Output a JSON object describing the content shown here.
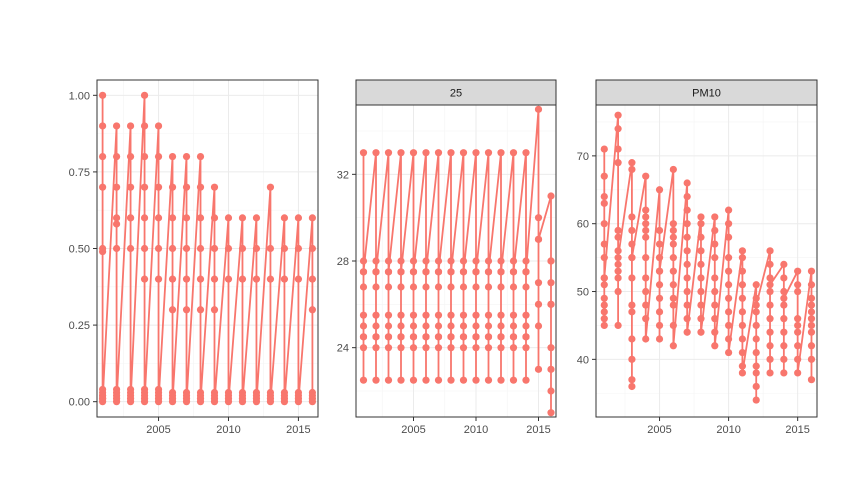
{
  "chart_data": [
    {
      "type": "line",
      "strip_label": "",
      "markers": true,
      "color": "#F8766D",
      "grid": true,
      "xlim": [
        2000.6,
        2016.4
      ],
      "ylim": [
        -0.05,
        1.05
      ],
      "x_ticks": [
        2005,
        2010,
        2015
      ],
      "y_ticks": [
        0.0,
        0.25,
        0.5,
        0.75,
        1.0
      ],
      "y_tick_labels": [
        "0.00",
        "0.25",
        "0.50",
        "0.75",
        "1.00"
      ],
      "x": [
        2001,
        2001,
        2001,
        2001,
        2001,
        2001,
        2001,
        2001,
        2001,
        2001,
        2001,
        2001,
        2001,
        2002,
        2002,
        2002,
        2002,
        2002,
        2002,
        2002,
        2002,
        2002,
        2002,
        2002,
        2003,
        2003,
        2003,
        2003,
        2003,
        2003,
        2003,
        2003,
        2003,
        2003,
        2003,
        2004,
        2004,
        2004,
        2004,
        2004,
        2004,
        2004,
        2004,
        2004,
        2004,
        2004,
        2004,
        2005,
        2005,
        2005,
        2005,
        2005,
        2005,
        2005,
        2005,
        2005,
        2005,
        2005,
        2006,
        2006,
        2006,
        2006,
        2006,
        2006,
        2006,
        2006,
        2006,
        2006,
        2007,
        2007,
        2007,
        2007,
        2007,
        2007,
        2007,
        2007,
        2007,
        2007,
        2008,
        2008,
        2008,
        2008,
        2008,
        2008,
        2008,
        2008,
        2008,
        2008,
        2009,
        2009,
        2009,
        2009,
        2009,
        2009,
        2009,
        2009,
        2009,
        2010,
        2010,
        2010,
        2010,
        2010,
        2010,
        2010,
        2011,
        2011,
        2011,
        2011,
        2011,
        2011,
        2011,
        2012,
        2012,
        2012,
        2012,
        2012,
        2012,
        2012,
        2013,
        2013,
        2013,
        2013,
        2013,
        2013,
        2013,
        2014,
        2014,
        2014,
        2014,
        2014,
        2014,
        2014,
        2015,
        2015,
        2015,
        2015,
        2015,
        2015,
        2015,
        2016,
        2016,
        2016,
        2016,
        2016,
        2016,
        2016,
        2016
      ],
      "y": [
        1.0,
        0.9,
        0.8,
        0.7,
        0.5,
        0.49,
        0.04,
        0.03,
        0.02,
        0.02,
        0.01,
        0.01,
        0.0,
        0.9,
        0.8,
        0.7,
        0.6,
        0.58,
        0.5,
        0.04,
        0.03,
        0.02,
        0.01,
        0.0,
        0.9,
        0.8,
        0.7,
        0.6,
        0.6,
        0.5,
        0.04,
        0.03,
        0.02,
        0.01,
        0.0,
        1.0,
        0.9,
        0.8,
        0.7,
        0.6,
        0.5,
        0.4,
        0.04,
        0.03,
        0.02,
        0.01,
        0.0,
        0.9,
        0.8,
        0.7,
        0.6,
        0.5,
        0.4,
        0.04,
        0.03,
        0.02,
        0.01,
        0.0,
        0.8,
        0.7,
        0.6,
        0.5,
        0.4,
        0.3,
        0.03,
        0.02,
        0.01,
        0.0,
        0.8,
        0.7,
        0.6,
        0.5,
        0.4,
        0.3,
        0.03,
        0.02,
        0.01,
        0.0,
        0.8,
        0.7,
        0.6,
        0.5,
        0.4,
        0.3,
        0.03,
        0.02,
        0.01,
        0.0,
        0.7,
        0.6,
        0.5,
        0.4,
        0.3,
        0.03,
        0.02,
        0.01,
        0.0,
        0.6,
        0.5,
        0.4,
        0.03,
        0.02,
        0.01,
        0.0,
        0.6,
        0.5,
        0.4,
        0.03,
        0.02,
        0.01,
        0.0,
        0.6,
        0.5,
        0.4,
        0.03,
        0.02,
        0.01,
        0.0,
        0.7,
        0.5,
        0.4,
        0.03,
        0.02,
        0.01,
        0.0,
        0.6,
        0.5,
        0.4,
        0.03,
        0.02,
        0.01,
        0.0,
        0.6,
        0.5,
        0.4,
        0.03,
        0.02,
        0.01,
        0.0,
        0.6,
        0.5,
        0.4,
        0.3,
        0.03,
        0.02,
        0.01,
        0.0
      ]
    },
    {
      "type": "line",
      "strip_label": "25",
      "markers": true,
      "color": "#F8766D",
      "grid": true,
      "xlim": [
        2000.4,
        2016.4
      ],
      "ylim": [
        20.8,
        35.2
      ],
      "x_ticks": [
        2005,
        2010,
        2015
      ],
      "y_ticks": [
        24,
        28,
        32
      ],
      "y_tick_labels": [
        "24",
        "28",
        "32"
      ],
      "x": [
        2001,
        2001,
        2001,
        2001,
        2001,
        2001,
        2001,
        2001,
        2001,
        2001,
        2001,
        2002,
        2002,
        2002,
        2002,
        2002,
        2002,
        2002,
        2002,
        2002,
        2002,
        2002,
        2003,
        2003,
        2003,
        2003,
        2003,
        2003,
        2003,
        2003,
        2003,
        2003,
        2003,
        2004,
        2004,
        2004,
        2004,
        2004,
        2004,
        2004,
        2004,
        2004,
        2004,
        2004,
        2005,
        2005,
        2005,
        2005,
        2005,
        2005,
        2005,
        2005,
        2005,
        2005,
        2005,
        2006,
        2006,
        2006,
        2006,
        2006,
        2006,
        2006,
        2006,
        2006,
        2006,
        2006,
        2007,
        2007,
        2007,
        2007,
        2007,
        2007,
        2007,
        2007,
        2007,
        2007,
        2007,
        2008,
        2008,
        2008,
        2008,
        2008,
        2008,
        2008,
        2008,
        2008,
        2008,
        2008,
        2009,
        2009,
        2009,
        2009,
        2009,
        2009,
        2009,
        2009,
        2009,
        2009,
        2009,
        2010,
        2010,
        2010,
        2010,
        2010,
        2010,
        2010,
        2010,
        2010,
        2010,
        2010,
        2011,
        2011,
        2011,
        2011,
        2011,
        2011,
        2011,
        2011,
        2011,
        2011,
        2011,
        2012,
        2012,
        2012,
        2012,
        2012,
        2012,
        2012,
        2012,
        2012,
        2012,
        2012,
        2013,
        2013,
        2013,
        2013,
        2013,
        2013,
        2013,
        2013,
        2013,
        2013,
        2013,
        2014,
        2014,
        2014,
        2014,
        2014,
        2014,
        2014,
        2014,
        2014,
        2014,
        2014,
        2015,
        2015,
        2015,
        2015,
        2015,
        2015,
        2015,
        2015,
        2016,
        2016,
        2016,
        2016,
        2016,
        2016,
        2016,
        2016,
        2016,
        2016
      ],
      "y": [
        33,
        28,
        27.5,
        26.8,
        25.5,
        25,
        24.5,
        24,
        22.5,
        24.5,
        27.5,
        33,
        28,
        27.5,
        26.8,
        25.5,
        25,
        24.5,
        24,
        22.5,
        24.5,
        27.5,
        33,
        28,
        27.5,
        26.8,
        25.5,
        25,
        24.5,
        24,
        22.5,
        24.5,
        27.5,
        33,
        28,
        27.5,
        26.8,
        25.5,
        25,
        24.5,
        24,
        22.5,
        24.5,
        27.5,
        33,
        28,
        27.5,
        26.8,
        25.5,
        25,
        24.5,
        24,
        22.5,
        24.5,
        27.5,
        33,
        28,
        27.5,
        26.8,
        25.5,
        25,
        24.5,
        24,
        22.5,
        24.5,
        27.5,
        33,
        28,
        27.5,
        26.8,
        25.5,
        25,
        24.5,
        24,
        22.5,
        24.5,
        27.5,
        33,
        28,
        27.5,
        26.8,
        25.5,
        25,
        24.5,
        24,
        22.5,
        24.5,
        27.5,
        33,
        28,
        27.5,
        26.8,
        25.5,
        25,
        24.5,
        24,
        22.5,
        24.5,
        27.5,
        33,
        28,
        27.5,
        26.8,
        25.5,
        25,
        24.5,
        24,
        22.5,
        24.5,
        27.5,
        33,
        28,
        27.5,
        26.8,
        25.5,
        25,
        24.5,
        24,
        22.5,
        24.5,
        27.5,
        33,
        28,
        27.5,
        26.8,
        25.5,
        25,
        24.5,
        24,
        22.5,
        24.5,
        27.5,
        33,
        28,
        27.5,
        26.8,
        25.5,
        25,
        24.5,
        24,
        22.5,
        24.5,
        27.5,
        33,
        28,
        27.5,
        26.8,
        25.5,
        25,
        24.5,
        24,
        22.5,
        24.5,
        27.5,
        35,
        30,
        29,
        27,
        25,
        23,
        26,
        29,
        31,
        28,
        27,
        26,
        24,
        23,
        22,
        21,
        26,
        28
      ]
    },
    {
      "type": "line",
      "strip_label": "PM10",
      "markers": true,
      "color": "#F8766D",
      "grid": true,
      "xlim": [
        2000.4,
        2016.4
      ],
      "ylim": [
        31.5,
        77.5
      ],
      "x_ticks": [
        2005,
        2010,
        2015
      ],
      "y_ticks": [
        40,
        50,
        60,
        70
      ],
      "y_tick_labels": [
        "40",
        "50",
        "60",
        "70"
      ],
      "x": [
        2001,
        2001,
        2001,
        2001,
        2001,
        2001,
        2001,
        2001,
        2001,
        2001,
        2001,
        2001,
        2001,
        2001,
        2001,
        2002,
        2002,
        2002,
        2002,
        2002,
        2002,
        2002,
        2002,
        2002,
        2002,
        2002,
        2002,
        2002,
        2003,
        2003,
        2003,
        2003,
        2003,
        2003,
        2003,
        2003,
        2003,
        2003,
        2003,
        2003,
        2003,
        2003,
        2004,
        2004,
        2004,
        2004,
        2004,
        2004,
        2004,
        2004,
        2004,
        2004,
        2004,
        2004,
        2005,
        2005,
        2005,
        2005,
        2005,
        2005,
        2005,
        2005,
        2005,
        2005,
        2005,
        2006,
        2006,
        2006,
        2006,
        2006,
        2006,
        2006,
        2006,
        2006,
        2006,
        2006,
        2006,
        2007,
        2007,
        2007,
        2007,
        2007,
        2007,
        2007,
        2007,
        2007,
        2007,
        2007,
        2007,
        2008,
        2008,
        2008,
        2008,
        2008,
        2008,
        2008,
        2008,
        2008,
        2008,
        2009,
        2009,
        2009,
        2009,
        2009,
        2009,
        2009,
        2009,
        2009,
        2009,
        2010,
        2010,
        2010,
        2010,
        2010,
        2010,
        2010,
        2010,
        2010,
        2010,
        2010,
        2011,
        2011,
        2011,
        2011,
        2011,
        2011,
        2011,
        2011,
        2011,
        2011,
        2011,
        2012,
        2012,
        2012,
        2012,
        2012,
        2012,
        2012,
        2012,
        2012,
        2012,
        2012,
        2013,
        2013,
        2013,
        2013,
        2013,
        2013,
        2013,
        2013,
        2013,
        2013,
        2013,
        2014,
        2014,
        2014,
        2014,
        2014,
        2014,
        2014,
        2014,
        2014,
        2014,
        2015,
        2015,
        2015,
        2015,
        2015,
        2015,
        2015,
        2015,
        2015,
        2016,
        2016,
        2016,
        2016,
        2016,
        2016,
        2016,
        2016,
        2016,
        2016,
        2016
      ],
      "y": [
        71,
        67,
        64,
        63,
        60,
        57,
        55,
        52,
        51,
        49,
        48,
        46,
        45,
        47,
        52,
        76,
        74,
        71,
        69,
        59,
        58,
        56,
        54,
        53,
        52,
        50,
        45,
        55,
        69,
        68,
        61,
        59,
        57,
        55,
        52,
        48,
        47,
        43,
        40,
        37,
        36,
        55,
        67,
        62,
        61,
        60,
        59,
        58,
        55,
        52,
        50,
        48,
        46,
        43,
        65,
        59,
        57,
        55,
        53,
        51,
        49,
        47,
        45,
        43,
        53,
        68,
        60,
        59,
        58,
        57,
        55,
        53,
        51,
        49,
        48,
        45,
        42,
        66,
        64,
        62,
        60,
        58,
        56,
        54,
        52,
        50,
        48,
        46,
        44,
        61,
        60,
        58,
        56,
        54,
        52,
        50,
        48,
        46,
        44,
        61,
        59,
        57,
        55,
        52,
        50,
        48,
        46,
        44,
        42,
        62,
        60,
        58,
        55,
        53,
        51,
        49,
        47,
        45,
        43,
        41,
        56,
        55,
        53,
        51,
        49,
        47,
        45,
        43,
        41,
        39,
        38,
        51,
        49,
        47,
        45,
        43,
        41,
        39,
        38,
        36,
        34,
        48,
        56,
        54,
        52,
        50,
        48,
        46,
        44,
        42,
        40,
        38,
        51,
        54,
        52,
        50,
        48,
        46,
        44,
        42,
        40,
        38,
        49,
        53,
        51,
        50,
        46,
        45,
        44,
        42,
        40,
        38,
        53,
        51,
        49,
        48,
        47,
        46,
        45,
        44,
        42,
        40,
        37
      ]
    }
  ]
}
